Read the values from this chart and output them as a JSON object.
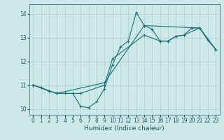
{
  "title": "",
  "xlabel": "Humidex (Indice chaleur)",
  "xlim": [
    -0.5,
    23.5
  ],
  "ylim": [
    9.75,
    14.4
  ],
  "yticks": [
    10,
    11,
    12,
    13,
    14
  ],
  "xticks": [
    0,
    1,
    2,
    3,
    4,
    5,
    6,
    7,
    8,
    9,
    10,
    11,
    12,
    13,
    14,
    15,
    16,
    17,
    18,
    19,
    20,
    21,
    22,
    23
  ],
  "bg_color": "#cce8e8",
  "grid_color": "#aacfcf",
  "line_color": "#1a7070",
  "line1_x": [
    0,
    1,
    2,
    3,
    4,
    5,
    6,
    7,
    8,
    9,
    10,
    11,
    12,
    13,
    14,
    15,
    16,
    17,
    18,
    19,
    20,
    21,
    22,
    23
  ],
  "line1_y": [
    11.0,
    10.9,
    10.75,
    10.65,
    10.65,
    10.65,
    10.1,
    10.05,
    10.3,
    10.85,
    11.85,
    12.6,
    12.85,
    14.05,
    13.5,
    13.35,
    12.85,
    12.85,
    13.05,
    13.1,
    13.4,
    13.4,
    12.9,
    12.5
  ],
  "line2_x": [
    0,
    2,
    3,
    5,
    6,
    9,
    10,
    14,
    16,
    17,
    18,
    19,
    21,
    23
  ],
  "line2_y": [
    11.0,
    10.75,
    10.65,
    10.65,
    10.65,
    11.0,
    12.1,
    13.1,
    12.85,
    12.85,
    13.05,
    13.1,
    13.4,
    12.5
  ],
  "line3_x": [
    0,
    3,
    9,
    14,
    21,
    23
  ],
  "line3_y": [
    11.0,
    10.65,
    11.1,
    13.5,
    13.4,
    12.5
  ]
}
